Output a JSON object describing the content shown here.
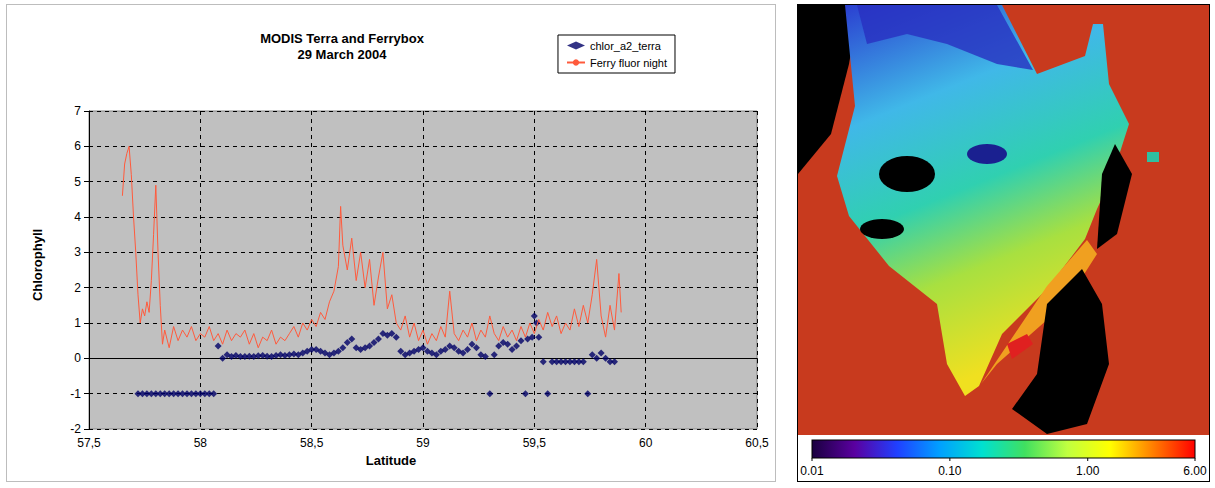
{
  "chart_data": [
    {
      "type": "scatter_line",
      "title": "MODIS Terra and Ferrybox",
      "subtitle": "29 March 2004",
      "x_label": "Latitude",
      "y_label": "Chlorophyll",
      "xlim": [
        57.5,
        60.5
      ],
      "xticks": [
        {
          "value": 57.5,
          "label": "57,5"
        },
        58,
        {
          "value": 58.5,
          "label": "58,5"
        },
        59,
        {
          "value": 59.5,
          "label": "59,5"
        },
        60,
        {
          "value": 60.5,
          "label": "60,5"
        }
      ],
      "ylim": [
        -2,
        7
      ],
      "yticks": [
        -2,
        -1,
        0,
        1,
        2,
        3,
        4,
        5,
        6,
        7
      ],
      "grid": true,
      "legend": "upper right",
      "series": [
        {
          "name": "chlor_a2_terra",
          "type": "scatter",
          "color": "#000066",
          "marker": "diamond",
          "x": [
            57.72,
            57.74,
            57.76,
            57.78,
            57.8,
            57.82,
            57.84,
            57.86,
            57.88,
            57.9,
            57.92,
            57.94,
            57.96,
            57.98,
            58.0,
            58.02,
            58.04,
            58.06,
            58.08,
            58.1,
            58.12,
            58.14,
            58.16,
            58.18,
            58.2,
            58.22,
            58.24,
            58.26,
            58.28,
            58.3,
            58.32,
            58.34,
            58.36,
            58.38,
            58.4,
            58.42,
            58.44,
            58.46,
            58.48,
            58.5,
            58.52,
            58.54,
            58.56,
            58.58,
            58.6,
            58.62,
            58.64,
            58.66,
            58.68,
            58.7,
            58.72,
            58.74,
            58.76,
            58.78,
            58.8,
            58.82,
            58.84,
            58.86,
            58.88,
            58.9,
            58.92,
            58.94,
            58.96,
            58.98,
            59.0,
            59.02,
            59.04,
            59.06,
            59.08,
            59.1,
            59.12,
            59.14,
            59.16,
            59.18,
            59.2,
            59.22,
            59.24,
            59.26,
            59.28,
            59.3,
            59.32,
            59.34,
            59.36,
            59.38,
            59.4,
            59.42,
            59.44,
            59.46,
            59.47,
            59.49,
            59.5,
            59.51,
            59.52,
            59.54,
            59.56,
            59.58,
            59.6,
            59.62,
            59.64,
            59.66,
            59.68,
            59.7,
            59.72,
            59.74,
            59.76,
            59.78,
            59.8,
            59.82,
            59.84,
            59.86
          ],
          "values": [
            -1,
            -1,
            -1,
            -1,
            -1,
            -1,
            -1,
            -1,
            -1,
            -1,
            -1,
            -1,
            -1,
            -1,
            -1,
            -1,
            -1,
            -1,
            0.35,
            0.0,
            0.1,
            0.05,
            0.08,
            0.05,
            0.05,
            0.06,
            0.05,
            0.07,
            0.08,
            0.06,
            0.05,
            0.08,
            0.1,
            0.08,
            0.1,
            0.12,
            0.1,
            0.15,
            0.2,
            0.25,
            0.25,
            0.2,
            0.15,
            0.1,
            0.15,
            0.2,
            0.3,
            0.45,
            0.55,
            0.3,
            0.25,
            0.3,
            0.35,
            0.45,
            0.55,
            0.7,
            0.65,
            0.7,
            0.6,
            0.2,
            0.1,
            0.15,
            0.2,
            0.25,
            0.3,
            0.2,
            0.15,
            0.1,
            0.2,
            0.25,
            0.35,
            0.3,
            0.2,
            0.15,
            0.25,
            0.4,
            0.3,
            0.1,
            0.05,
            -1,
            0.1,
            0.35,
            0.45,
            0.4,
            0.25,
            0.35,
            0.5,
            -1,
            0.55,
            0.6,
            1.2,
            1.0,
            0.6,
            -0.1,
            -1,
            -0.1,
            -0.1,
            -0.1,
            -0.1,
            -0.1,
            -0.1,
            -0.1,
            -0.1,
            -1,
            0.1,
            0.0,
            0.15,
            0.0,
            -0.1,
            -0.1
          ]
        },
        {
          "name": "Ferry fluor night",
          "type": "line",
          "color": "#ff5a3c",
          "line_style": "solid",
          "x": [
            57.65,
            57.66,
            57.67,
            57.68,
            57.69,
            57.7,
            57.71,
            57.72,
            57.73,
            57.74,
            57.75,
            57.76,
            57.77,
            57.78,
            57.79,
            57.8,
            57.81,
            57.82,
            57.83,
            57.84,
            57.86,
            57.88,
            57.9,
            57.92,
            57.94,
            57.96,
            57.98,
            58.0,
            58.02,
            58.04,
            58.06,
            58.08,
            58.1,
            58.12,
            58.14,
            58.16,
            58.18,
            58.2,
            58.22,
            58.24,
            58.26,
            58.28,
            58.3,
            58.32,
            58.34,
            58.36,
            58.38,
            58.4,
            58.42,
            58.44,
            58.46,
            58.48,
            58.5,
            58.52,
            58.54,
            58.56,
            58.58,
            58.6,
            58.62,
            58.63,
            58.64,
            58.66,
            58.68,
            58.7,
            58.72,
            58.74,
            58.76,
            58.78,
            58.8,
            58.82,
            58.84,
            58.86,
            58.88,
            58.9,
            58.92,
            58.94,
            58.96,
            58.98,
            59.0,
            59.02,
            59.04,
            59.06,
            59.08,
            59.1,
            59.12,
            59.14,
            59.16,
            59.18,
            59.2,
            59.22,
            59.24,
            59.26,
            59.28,
            59.3,
            59.32,
            59.34,
            59.36,
            59.38,
            59.4,
            59.42,
            59.44,
            59.46,
            59.48,
            59.5,
            59.52,
            59.54,
            59.56,
            59.58,
            59.6,
            59.62,
            59.64,
            59.66,
            59.68,
            59.7,
            59.72,
            59.74,
            59.76,
            59.78,
            59.8,
            59.82,
            59.84,
            59.86,
            59.88,
            59.89
          ],
          "values": [
            4.6,
            5.5,
            5.8,
            6.0,
            5.2,
            4.0,
            3.0,
            1.8,
            1.0,
            1.4,
            1.2,
            1.6,
            1.3,
            2.2,
            3.5,
            4.9,
            3.0,
            1.5,
            0.4,
            0.8,
            0.3,
            0.9,
            0.5,
            0.8,
            0.6,
            0.9,
            0.5,
            0.7,
            0.6,
            0.9,
            0.5,
            0.7,
            0.4,
            0.8,
            0.5,
            0.7,
            0.6,
            0.8,
            0.4,
            0.7,
            0.3,
            0.6,
            0.5,
            0.8,
            0.4,
            0.6,
            0.5,
            0.7,
            0.9,
            0.6,
            1.0,
            0.8,
            1.1,
            0.9,
            1.3,
            1.1,
            1.6,
            1.9,
            2.6,
            4.3,
            3.2,
            2.5,
            3.4,
            2.2,
            3.0,
            2.0,
            2.8,
            1.5,
            2.3,
            3.0,
            1.4,
            1.8,
            1.0,
            0.8,
            1.2,
            0.6,
            1.0,
            0.5,
            0.8,
            0.4,
            0.7,
            0.5,
            0.9,
            0.6,
            1.9,
            0.7,
            0.5,
            0.8,
            0.6,
            1.0,
            0.5,
            0.8,
            0.6,
            1.2,
            0.7,
            0.5,
            0.9,
            0.6,
            0.8,
            0.5,
            0.9,
            0.6,
            1.0,
            0.7,
            1.1,
            0.8,
            1.3,
            0.9,
            1.2,
            0.7,
            1.0,
            0.8,
            1.4,
            0.9,
            1.5,
            1.0,
            1.8,
            2.8,
            1.2,
            0.6,
            1.5,
            0.8,
            2.4,
            1.3
          ]
        }
      ]
    },
    {
      "type": "map",
      "colorbar": {
        "lim": [
          0.01,
          6
        ],
        "log": true,
        "ticks": [
          {
            "value": 0.01,
            "label": "0.01"
          },
          {
            "value": 0.1,
            "label": "0.10"
          },
          {
            "value": 1,
            "label": "1.00"
          },
          {
            "value": 6,
            "label": "6.00"
          }
        ],
        "colors": [
          "#1a0040",
          "#5a00a0",
          "#2040ff",
          "#00a0ff",
          "#00e0d0",
          "#40e060",
          "#c0ff40",
          "#ffff00",
          "#ff8000",
          "#ff0000"
        ]
      }
    }
  ]
}
